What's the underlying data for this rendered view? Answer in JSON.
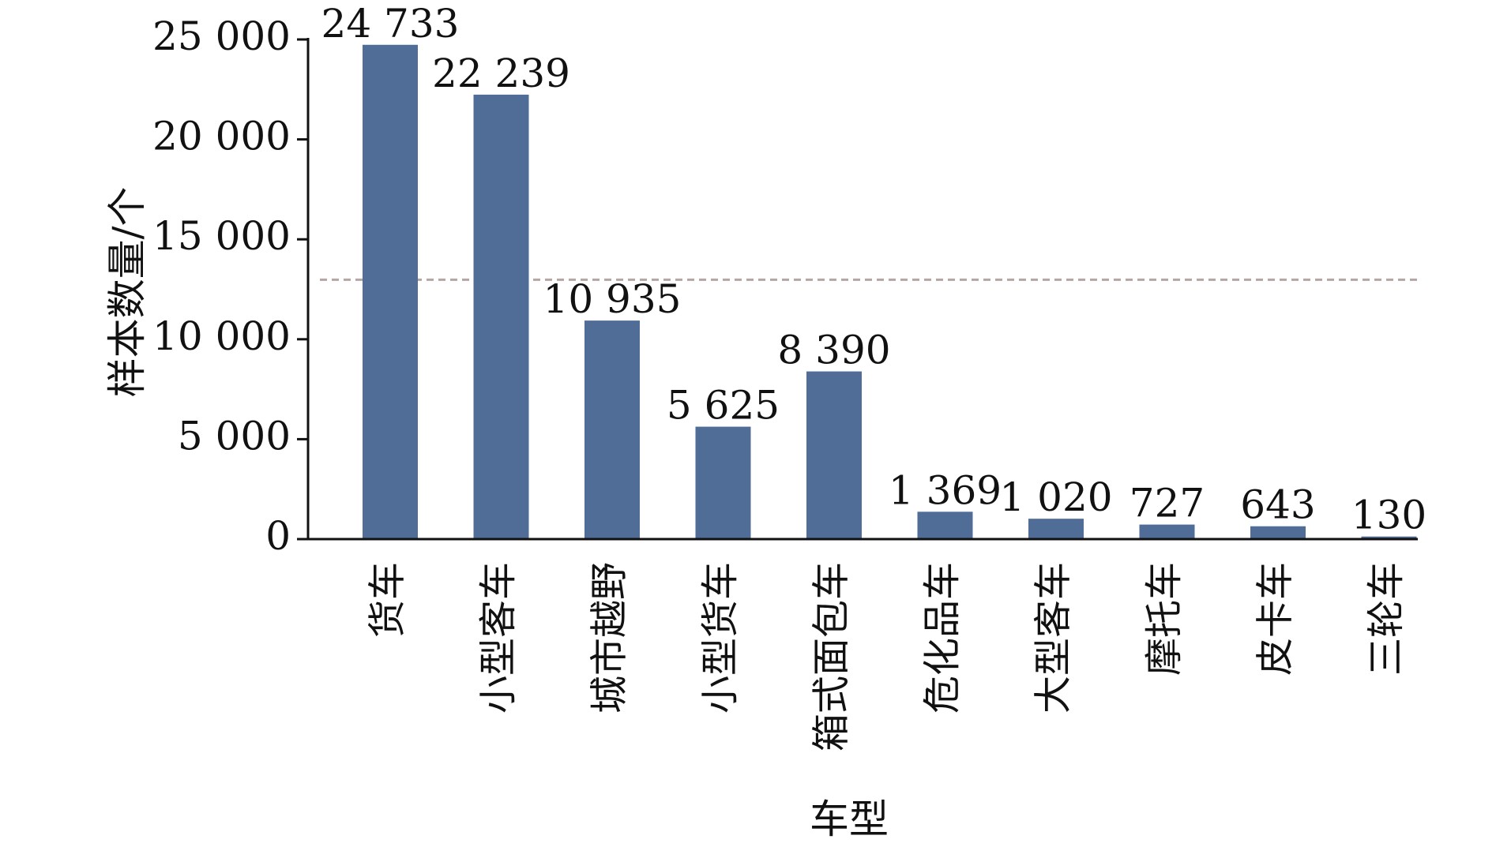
{
  "chart_data": {
    "type": "bar",
    "title": "",
    "xlabel": "车型",
    "ylabel": "样本数量/个",
    "categories": [
      "货车",
      "小型客车",
      "城市越野",
      "小型货车",
      "箱式面包车",
      "危化品车",
      "大型客车",
      "摩托车",
      "皮卡车",
      "三轮车"
    ],
    "values": [
      24733,
      22239,
      10935,
      5625,
      8390,
      1369,
      1020,
      727,
      643,
      130
    ],
    "value_labels": [
      "24 733",
      "22 239",
      "10 935",
      "5 625",
      "8 390",
      "1 369",
      "1 020",
      "727",
      "643",
      "130"
    ],
    "ylim": [
      0,
      25000
    ],
    "yticks": [
      0,
      5000,
      10000,
      15000,
      20000,
      25000
    ],
    "ytick_labels": [
      "0",
      "5 000",
      "10 000",
      "15 000",
      "20 000",
      "25 000"
    ],
    "reference_line": 12981,
    "grid": false,
    "legend": "none",
    "colors": {
      "bar": "#4f6d96",
      "axis": "#111111",
      "reference_line": "#b3a6a3"
    }
  }
}
